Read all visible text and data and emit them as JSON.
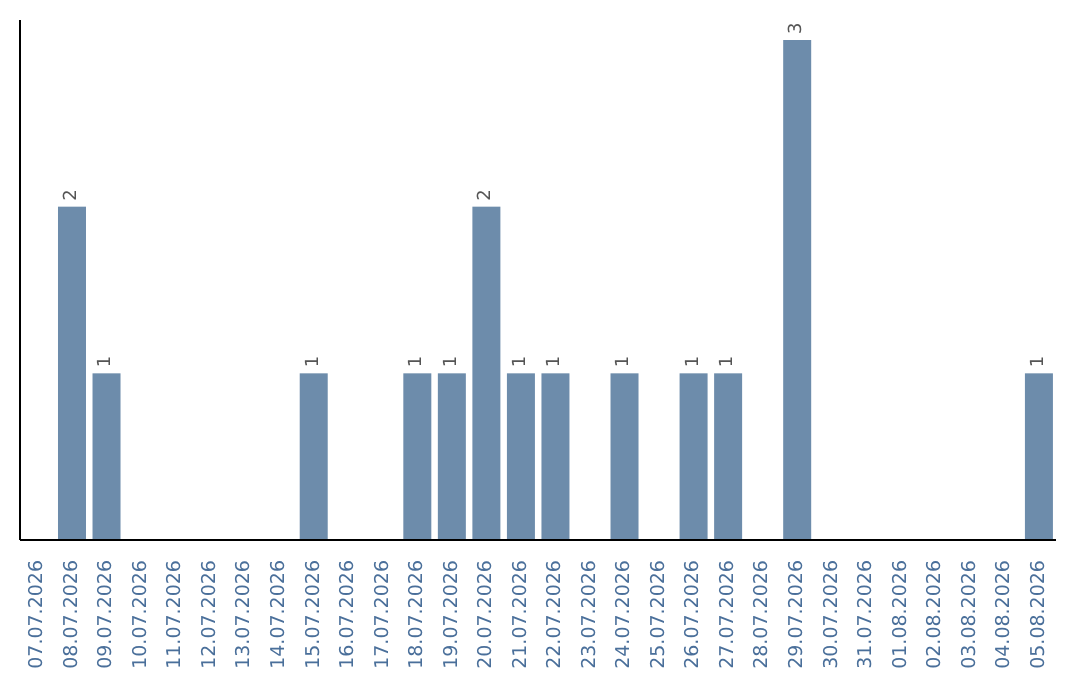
{
  "chart_data": {
    "type": "bar",
    "categories": [
      "07.07.2026",
      "08.07.2026",
      "09.07.2026",
      "10.07.2026",
      "11.07.2026",
      "12.07.2026",
      "13.07.2026",
      "14.07.2026",
      "15.07.2026",
      "16.07.2026",
      "17.07.2026",
      "18.07.2026",
      "19.07.2026",
      "20.07.2026",
      "21.07.2026",
      "22.07.2026",
      "23.07.2026",
      "24.07.2026",
      "25.07.2026",
      "26.07.2026",
      "27.07.2026",
      "28.07.2026",
      "29.07.2026",
      "30.07.2026",
      "31.07.2026",
      "01.08.2026",
      "02.08.2026",
      "03.08.2026",
      "04.08.2026",
      "05.08.2026"
    ],
    "values": [
      0,
      2,
      1,
      0,
      0,
      0,
      0,
      0,
      1,
      0,
      0,
      1,
      1,
      2,
      1,
      1,
      0,
      1,
      0,
      1,
      1,
      0,
      3,
      0,
      0,
      0,
      0,
      0,
      0,
      1
    ],
    "value_labels": [
      null,
      "2",
      "1",
      null,
      null,
      null,
      null,
      null,
      "1",
      null,
      null,
      "1",
      "1",
      "2",
      "1",
      "1",
      null,
      "1",
      null,
      "1",
      "1",
      null,
      "3",
      null,
      null,
      null,
      null,
      null,
      null,
      "1"
    ],
    "color": "#6d8cab"
  }
}
